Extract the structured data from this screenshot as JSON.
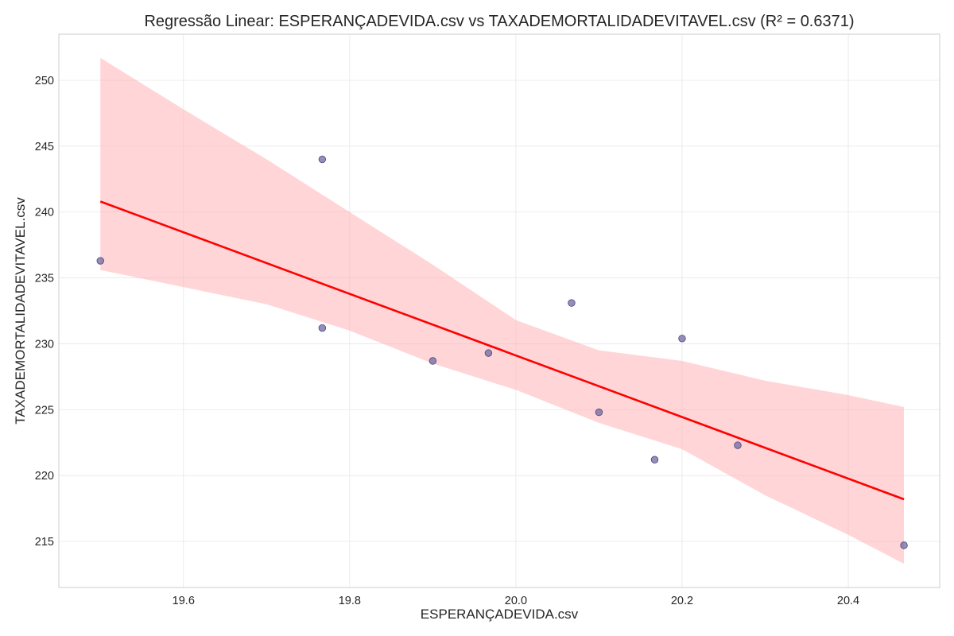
{
  "chart_data": {
    "type": "scatter",
    "title": "Regressão Linear: ESPERANÇADEVIDA.csv vs TAXADEMORTALIDADEVITAVEL.csv (R² = 0.6371)",
    "xlabel": "ESPERANÇADEVIDA.csv",
    "ylabel": "TAXADEMORTALIDADEVITAVEL.csv",
    "xlim": [
      19.45,
      20.51
    ],
    "ylim": [
      211.5,
      253.5
    ],
    "xticks": [
      19.6,
      19.8,
      20.0,
      20.2,
      20.4
    ],
    "xtick_labels": [
      "19.6",
      "19.8",
      "20.0",
      "20.2",
      "20.4"
    ],
    "yticks": [
      215,
      220,
      225,
      230,
      235,
      240,
      245,
      250
    ],
    "ytick_labels": [
      "215",
      "220",
      "225",
      "230",
      "235",
      "240",
      "245",
      "250"
    ],
    "grid": true,
    "points": [
      {
        "x": 19.5,
        "y": 236.3
      },
      {
        "x": 19.767,
        "y": 244.0
      },
      {
        "x": 19.767,
        "y": 231.2
      },
      {
        "x": 19.9,
        "y": 228.7
      },
      {
        "x": 19.967,
        "y": 229.3
      },
      {
        "x": 20.067,
        "y": 233.1
      },
      {
        "x": 20.1,
        "y": 224.8
      },
      {
        "x": 20.167,
        "y": 221.2
      },
      {
        "x": 20.2,
        "y": 230.4
      },
      {
        "x": 20.267,
        "y": 222.3
      },
      {
        "x": 20.467,
        "y": 214.7
      }
    ],
    "regression_line": {
      "x": [
        19.5,
        20.467
      ],
      "y": [
        240.8,
        218.2
      ]
    },
    "confidence_band": {
      "x": [
        19.5,
        19.6,
        19.7,
        19.8,
        19.9,
        20.0,
        20.1,
        20.2,
        20.3,
        20.4,
        20.467
      ],
      "upper": [
        251.7,
        247.8,
        244.0,
        240.0,
        236.0,
        231.8,
        229.5,
        228.7,
        227.2,
        226.1,
        225.2
      ],
      "lower": [
        235.6,
        234.3,
        233.0,
        231.0,
        228.5,
        226.5,
        224.0,
        222.0,
        218.5,
        215.5,
        213.3
      ]
    },
    "colors": {
      "points": "#6f6a9f",
      "point_edge": "#4a4680",
      "line": "#ff0000",
      "band": "#ffb3b6"
    }
  }
}
